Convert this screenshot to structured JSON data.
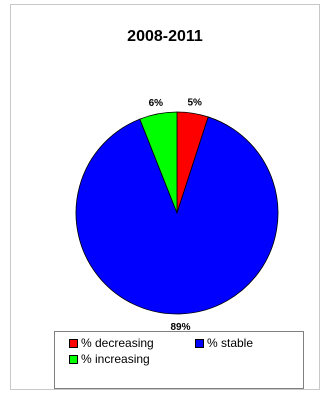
{
  "chart_data": {
    "type": "pie",
    "title": "2008-2011",
    "slices": [
      {
        "name": "% decreasing",
        "value": 5,
        "label": "5%",
        "color": "#ff0000"
      },
      {
        "name": "% stable",
        "value": 89,
        "label": "89%",
        "color": "#0000ff"
      },
      {
        "name": "% increasing",
        "value": 6,
        "label": "6%",
        "color": "#00ff00"
      }
    ],
    "legend": {
      "placement": "bottom",
      "items": [
        {
          "label": "% decreasing",
          "color": "#ff0000"
        },
        {
          "label": "% stable",
          "color": "#0000ff"
        },
        {
          "label": "% increasing",
          "color": "#00ff00"
        }
      ]
    }
  }
}
